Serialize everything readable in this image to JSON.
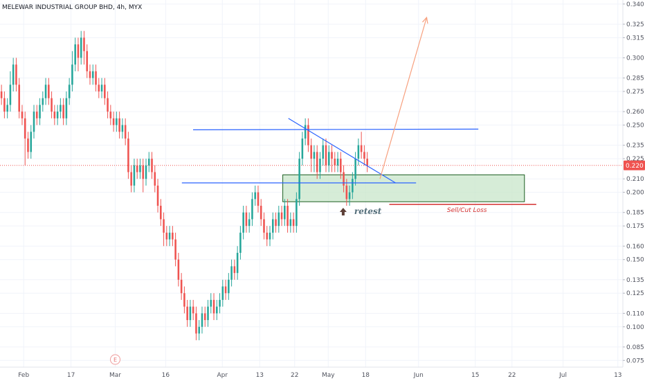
{
  "header": {
    "title": "MELEWAR INDUSTRIAL GROUP BHD, 4h, MYX"
  },
  "colors": {
    "up": "#26a69a",
    "down": "#ef5350",
    "grid": "#f0f3fa",
    "trendline": "#2962ff",
    "arrow": "#f7a07e",
    "zone_fill": "#c8e6c9",
    "zone_border": "#1b5e20",
    "stop_line": "#d32f2f",
    "price_tag": "#ef5350",
    "retest_arrow": "#5d4037"
  },
  "chart_data": {
    "type": "candlestick",
    "title": "MELEWAR INDUSTRIAL GROUP BHD, 4h, MYX",
    "symbol": "MELEWAR INDUSTRIAL GROUP BHD",
    "interval": "4h",
    "exchange": "MYX",
    "ylim": [
      0.07,
      0.343
    ],
    "y_ticks": [
      "0.075",
      "0.085",
      "0.100",
      "0.110",
      "0.125",
      "0.135",
      "0.150",
      "0.160",
      "0.175",
      "0.185",
      "0.200",
      "0.210",
      "0.225",
      "0.235",
      "0.250",
      "0.260",
      "0.275",
      "0.285",
      "0.300",
      "0.315",
      "0.325",
      "0.340"
    ],
    "x_ticks": [
      {
        "label": "Feb",
        "pos": 0.038
      },
      {
        "label": "17",
        "pos": 0.114
      },
      {
        "label": "Mar",
        "pos": 0.185
      },
      {
        "label": "16",
        "pos": 0.266
      },
      {
        "label": "Apr",
        "pos": 0.357
      },
      {
        "label": "13",
        "pos": 0.417
      },
      {
        "label": "22",
        "pos": 0.473
      },
      {
        "label": "May",
        "pos": 0.527
      },
      {
        "label": "18",
        "pos": 0.587
      },
      {
        "label": "Jun",
        "pos": 0.672
      },
      {
        "label": "15",
        "pos": 0.763
      },
      {
        "label": "22",
        "pos": 0.822
      },
      {
        "label": "Jul",
        "pos": 0.904
      },
      {
        "label": "13",
        "pos": 0.992
      }
    ],
    "current_price": "0.220",
    "events": [
      {
        "label": "E",
        "pos": 0.185
      }
    ],
    "annotations": {
      "retest_label": "retest",
      "stop_label": "Sell/Cut Loss"
    },
    "candles": [
      [
        0.275,
        0.27,
        0.28,
        0.265
      ],
      [
        0.27,
        0.26,
        0.275,
        0.255
      ],
      [
        0.26,
        0.265,
        0.27,
        0.255
      ],
      [
        0.265,
        0.28,
        0.29,
        0.26
      ],
      [
        0.28,
        0.295,
        0.3,
        0.275
      ],
      [
        0.295,
        0.28,
        0.3,
        0.275
      ],
      [
        0.28,
        0.26,
        0.285,
        0.255
      ],
      [
        0.26,
        0.255,
        0.265,
        0.25
      ],
      [
        0.255,
        0.24,
        0.26,
        0.22
      ],
      [
        0.24,
        0.23,
        0.245,
        0.225
      ],
      [
        0.23,
        0.245,
        0.25,
        0.225
      ],
      [
        0.245,
        0.26,
        0.265,
        0.24
      ],
      [
        0.26,
        0.255,
        0.265,
        0.25
      ],
      [
        0.255,
        0.265,
        0.27,
        0.25
      ],
      [
        0.265,
        0.27,
        0.275,
        0.26
      ],
      [
        0.27,
        0.28,
        0.285,
        0.265
      ],
      [
        0.28,
        0.27,
        0.285,
        0.265
      ],
      [
        0.27,
        0.26,
        0.275,
        0.255
      ],
      [
        0.26,
        0.255,
        0.265,
        0.25
      ],
      [
        0.255,
        0.26,
        0.265,
        0.25
      ],
      [
        0.26,
        0.265,
        0.27,
        0.255
      ],
      [
        0.265,
        0.255,
        0.27,
        0.25
      ],
      [
        0.255,
        0.27,
        0.275,
        0.25
      ],
      [
        0.27,
        0.28,
        0.285,
        0.265
      ],
      [
        0.28,
        0.295,
        0.305,
        0.275
      ],
      [
        0.295,
        0.31,
        0.315,
        0.29
      ],
      [
        0.31,
        0.3,
        0.315,
        0.29
      ],
      [
        0.3,
        0.315,
        0.32,
        0.295
      ],
      [
        0.315,
        0.305,
        0.32,
        0.295
      ],
      [
        0.305,
        0.29,
        0.31,
        0.285
      ],
      [
        0.29,
        0.285,
        0.295,
        0.28
      ],
      [
        0.285,
        0.29,
        0.295,
        0.28
      ],
      [
        0.29,
        0.28,
        0.295,
        0.275
      ],
      [
        0.28,
        0.275,
        0.285,
        0.27
      ],
      [
        0.275,
        0.28,
        0.285,
        0.27
      ],
      [
        0.28,
        0.27,
        0.285,
        0.265
      ],
      [
        0.27,
        0.26,
        0.275,
        0.255
      ],
      [
        0.26,
        0.255,
        0.265,
        0.25
      ],
      [
        0.255,
        0.25,
        0.26,
        0.245
      ],
      [
        0.25,
        0.255,
        0.26,
        0.245
      ],
      [
        0.255,
        0.245,
        0.26,
        0.24
      ],
      [
        0.245,
        0.25,
        0.255,
        0.24
      ],
      [
        0.25,
        0.24,
        0.255,
        0.235
      ],
      [
        0.24,
        0.215,
        0.245,
        0.21
      ],
      [
        0.215,
        0.205,
        0.22,
        0.2
      ],
      [
        0.205,
        0.22,
        0.225,
        0.2
      ],
      [
        0.22,
        0.215,
        0.225,
        0.21
      ],
      [
        0.215,
        0.22,
        0.225,
        0.21
      ],
      [
        0.22,
        0.21,
        0.225,
        0.2
      ],
      [
        0.21,
        0.22,
        0.225,
        0.205
      ],
      [
        0.22,
        0.225,
        0.23,
        0.215
      ],
      [
        0.225,
        0.215,
        0.23,
        0.21
      ],
      [
        0.215,
        0.205,
        0.22,
        0.2
      ],
      [
        0.205,
        0.19,
        0.21,
        0.185
      ],
      [
        0.19,
        0.18,
        0.195,
        0.175
      ],
      [
        0.18,
        0.17,
        0.185,
        0.16
      ],
      [
        0.17,
        0.165,
        0.175,
        0.16
      ],
      [
        0.165,
        0.17,
        0.175,
        0.16
      ],
      [
        0.17,
        0.165,
        0.175,
        0.16
      ],
      [
        0.165,
        0.15,
        0.17,
        0.145
      ],
      [
        0.15,
        0.135,
        0.155,
        0.13
      ],
      [
        0.135,
        0.125,
        0.14,
        0.12
      ],
      [
        0.125,
        0.115,
        0.13,
        0.11
      ],
      [
        0.115,
        0.105,
        0.12,
        0.1
      ],
      [
        0.105,
        0.115,
        0.12,
        0.1
      ],
      [
        0.115,
        0.11,
        0.12,
        0.105
      ],
      [
        0.11,
        0.095,
        0.115,
        0.09
      ],
      [
        0.095,
        0.1,
        0.105,
        0.09
      ],
      [
        0.1,
        0.11,
        0.115,
        0.095
      ],
      [
        0.11,
        0.105,
        0.115,
        0.1
      ],
      [
        0.105,
        0.115,
        0.12,
        0.1
      ],
      [
        0.115,
        0.12,
        0.125,
        0.11
      ],
      [
        0.12,
        0.11,
        0.125,
        0.105
      ],
      [
        0.11,
        0.115,
        0.12,
        0.105
      ],
      [
        0.115,
        0.12,
        0.125,
        0.11
      ],
      [
        0.12,
        0.13,
        0.135,
        0.115
      ],
      [
        0.13,
        0.125,
        0.135,
        0.12
      ],
      [
        0.125,
        0.135,
        0.14,
        0.12
      ],
      [
        0.135,
        0.145,
        0.15,
        0.13
      ],
      [
        0.145,
        0.14,
        0.15,
        0.135
      ],
      [
        0.14,
        0.155,
        0.16,
        0.135
      ],
      [
        0.155,
        0.17,
        0.175,
        0.15
      ],
      [
        0.17,
        0.185,
        0.19,
        0.165
      ],
      [
        0.185,
        0.175,
        0.19,
        0.17
      ],
      [
        0.175,
        0.18,
        0.185,
        0.17
      ],
      [
        0.18,
        0.195,
        0.2,
        0.175
      ],
      [
        0.195,
        0.2,
        0.205,
        0.19
      ],
      [
        0.2,
        0.19,
        0.205,
        0.185
      ],
      [
        0.19,
        0.18,
        0.195,
        0.175
      ],
      [
        0.18,
        0.17,
        0.185,
        0.165
      ],
      [
        0.17,
        0.165,
        0.175,
        0.16
      ],
      [
        0.165,
        0.17,
        0.175,
        0.16
      ],
      [
        0.17,
        0.18,
        0.185,
        0.165
      ],
      [
        0.18,
        0.175,
        0.185,
        0.17
      ],
      [
        0.175,
        0.185,
        0.19,
        0.17
      ],
      [
        0.185,
        0.18,
        0.19,
        0.175
      ],
      [
        0.18,
        0.19,
        0.195,
        0.175
      ],
      [
        0.19,
        0.175,
        0.195,
        0.17
      ],
      [
        0.175,
        0.18,
        0.185,
        0.17
      ],
      [
        0.18,
        0.175,
        0.185,
        0.17
      ],
      [
        0.175,
        0.195,
        0.2,
        0.17
      ],
      [
        0.195,
        0.225,
        0.23,
        0.19
      ],
      [
        0.225,
        0.24,
        0.245,
        0.22
      ],
      [
        0.24,
        0.25,
        0.255,
        0.235
      ],
      [
        0.25,
        0.235,
        0.255,
        0.23
      ],
      [
        0.235,
        0.225,
        0.24,
        0.215
      ],
      [
        0.225,
        0.23,
        0.235,
        0.215
      ],
      [
        0.23,
        0.215,
        0.235,
        0.21
      ],
      [
        0.215,
        0.225,
        0.23,
        0.21
      ],
      [
        0.225,
        0.235,
        0.24,
        0.22
      ],
      [
        0.235,
        0.22,
        0.24,
        0.215
      ],
      [
        0.22,
        0.23,
        0.235,
        0.215
      ],
      [
        0.23,
        0.225,
        0.235,
        0.215
      ],
      [
        0.225,
        0.22,
        0.23,
        0.215
      ],
      [
        0.22,
        0.225,
        0.23,
        0.215
      ],
      [
        0.225,
        0.215,
        0.23,
        0.21
      ],
      [
        0.215,
        0.205,
        0.22,
        0.2
      ],
      [
        0.205,
        0.195,
        0.21,
        0.19
      ],
      [
        0.195,
        0.2,
        0.205,
        0.19
      ],
      [
        0.2,
        0.21,
        0.215,
        0.195
      ],
      [
        0.21,
        0.225,
        0.23,
        0.205
      ],
      [
        0.225,
        0.235,
        0.24,
        0.22
      ],
      [
        0.235,
        0.23,
        0.245,
        0.225
      ],
      [
        0.23,
        0.225,
        0.235,
        0.22
      ],
      [
        0.225,
        0.22,
        0.23,
        0.215
      ]
    ],
    "drawings": {
      "resistance_line": {
        "x": [
          0.31,
          0.768
        ],
        "y": [
          0.2465,
          0.247
        ]
      },
      "support_line": {
        "x": [
          0.292,
          0.668
        ],
        "y": [
          0.207,
          0.207
        ]
      },
      "descending_trendline": {
        "x": [
          0.463,
          0.635
        ],
        "y": [
          0.255,
          0.207
        ]
      },
      "zone": {
        "x": [
          0.454,
          0.842
        ],
        "y": [
          0.193,
          0.213
        ]
      },
      "stop_line": {
        "x": [
          0.625,
          0.861
        ],
        "y": [
          0.191,
          0.191
        ]
      },
      "target_arrow": {
        "x": [
          0.61,
          0.685
        ],
        "y": [
          0.21,
          0.33
        ]
      },
      "retest_marker": {
        "x": 0.551,
        "y": 0.19
      }
    }
  }
}
